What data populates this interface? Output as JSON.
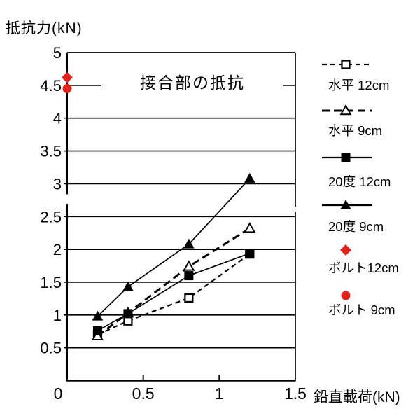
{
  "chart_data": {
    "type": "line",
    "title": "接合部の抵抗",
    "ylabel": "抵抗力(kN)",
    "xlabel": "鉛直載荷(kN)",
    "xlim": [
      0,
      1.5
    ],
    "ylim": [
      0,
      5
    ],
    "grid": "horizontal",
    "legend_position": "right",
    "colors": {
      "line": "#000000",
      "red_marker": "#e2231d",
      "background": "#ffffff"
    },
    "x_ticks": {
      "values": [
        0,
        0.5,
        1,
        1.5
      ],
      "labels": [
        "0",
        "0.5",
        "1",
        "1.5"
      ]
    },
    "y_ticks": {
      "values": [
        0.5,
        1,
        1.5,
        2,
        2.5,
        3,
        3.5,
        4,
        4.5,
        5
      ],
      "labels": [
        "0.5",
        "1",
        "1.5",
        "2",
        "2.5",
        "3",
        "3.5",
        "4",
        "4.5",
        "5"
      ]
    },
    "series": [
      {
        "name": "水平 12cm",
        "legend_label": "水平 12cm",
        "marker": "open-square",
        "line": "dashed-fine",
        "color": "#000000",
        "points": [
          [
            0.2,
            0.7
          ],
          [
            0.4,
            0.91
          ],
          [
            0.8,
            1.26
          ],
          [
            1.2,
            1.93
          ]
        ]
      },
      {
        "name": "水平 9cm",
        "legend_label": "水平  9cm",
        "marker": "open-triangle",
        "line": "dashed-heavy",
        "color": "#000000",
        "points": [
          [
            0.2,
            0.68
          ],
          [
            0.4,
            1.03
          ],
          [
            0.8,
            1.74
          ],
          [
            1.2,
            2.32
          ]
        ]
      },
      {
        "name": "20度 12cm",
        "legend_label": "20度 12cm",
        "marker": "filled-square",
        "line": "solid",
        "color": "#000000",
        "points": [
          [
            0.2,
            0.76
          ],
          [
            0.4,
            1.02
          ],
          [
            0.8,
            1.6
          ],
          [
            1.2,
            1.94
          ]
        ]
      },
      {
        "name": "20度 9cm",
        "legend_label": "20度  9cm",
        "marker": "filled-triangle",
        "line": "solid",
        "color": "#000000",
        "points": [
          [
            0.2,
            0.98
          ],
          [
            0.4,
            1.43
          ],
          [
            0.8,
            2.08
          ],
          [
            1.2,
            3.08
          ]
        ]
      },
      {
        "name": "ボルト12cm",
        "legend_label": "ボルト12cm",
        "marker": "red-diamond",
        "line": "none",
        "color": "#e2231d",
        "points": [
          [
            0,
            4.62
          ]
        ]
      },
      {
        "name": "ボルト 9cm",
        "legend_label": "ボルト 9cm",
        "marker": "red-circle",
        "line": "none",
        "color": "#e2231d",
        "points": [
          [
            0,
            4.45
          ]
        ]
      }
    ]
  }
}
